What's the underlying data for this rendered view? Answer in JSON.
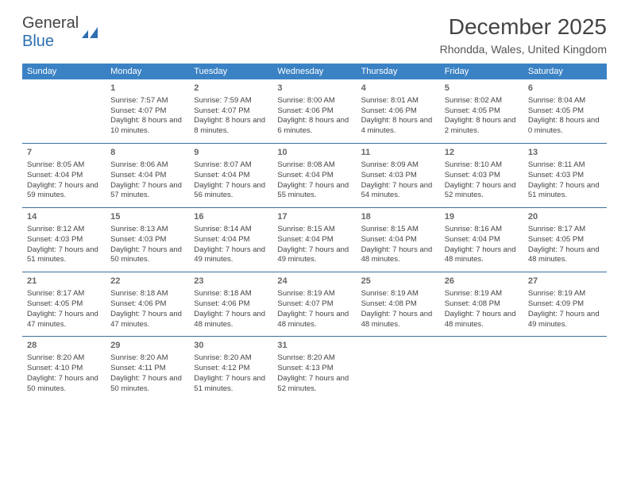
{
  "logo": {
    "word1": "General",
    "word2": "Blue"
  },
  "title": "December 2025",
  "location": "Rhondda, Wales, United Kingdom",
  "colors": {
    "headerBg": "#3b82c4",
    "headerText": "#ffffff",
    "rule": "#3b6fa0",
    "text": "#444444",
    "logoBlue": "#2d6fb0"
  },
  "dayHeaders": [
    "Sunday",
    "Monday",
    "Tuesday",
    "Wednesday",
    "Thursday",
    "Friday",
    "Saturday"
  ],
  "weeks": [
    [
      null,
      {
        "d": "1",
        "sr": "7:57 AM",
        "ss": "4:07 PM",
        "dl": "8 hours and 10 minutes."
      },
      {
        "d": "2",
        "sr": "7:59 AM",
        "ss": "4:07 PM",
        "dl": "8 hours and 8 minutes."
      },
      {
        "d": "3",
        "sr": "8:00 AM",
        "ss": "4:06 PM",
        "dl": "8 hours and 6 minutes."
      },
      {
        "d": "4",
        "sr": "8:01 AM",
        "ss": "4:06 PM",
        "dl": "8 hours and 4 minutes."
      },
      {
        "d": "5",
        "sr": "8:02 AM",
        "ss": "4:05 PM",
        "dl": "8 hours and 2 minutes."
      },
      {
        "d": "6",
        "sr": "8:04 AM",
        "ss": "4:05 PM",
        "dl": "8 hours and 0 minutes."
      }
    ],
    [
      {
        "d": "7",
        "sr": "8:05 AM",
        "ss": "4:04 PM",
        "dl": "7 hours and 59 minutes."
      },
      {
        "d": "8",
        "sr": "8:06 AM",
        "ss": "4:04 PM",
        "dl": "7 hours and 57 minutes."
      },
      {
        "d": "9",
        "sr": "8:07 AM",
        "ss": "4:04 PM",
        "dl": "7 hours and 56 minutes."
      },
      {
        "d": "10",
        "sr": "8:08 AM",
        "ss": "4:04 PM",
        "dl": "7 hours and 55 minutes."
      },
      {
        "d": "11",
        "sr": "8:09 AM",
        "ss": "4:03 PM",
        "dl": "7 hours and 54 minutes."
      },
      {
        "d": "12",
        "sr": "8:10 AM",
        "ss": "4:03 PM",
        "dl": "7 hours and 52 minutes."
      },
      {
        "d": "13",
        "sr": "8:11 AM",
        "ss": "4:03 PM",
        "dl": "7 hours and 51 minutes."
      }
    ],
    [
      {
        "d": "14",
        "sr": "8:12 AM",
        "ss": "4:03 PM",
        "dl": "7 hours and 51 minutes."
      },
      {
        "d": "15",
        "sr": "8:13 AM",
        "ss": "4:03 PM",
        "dl": "7 hours and 50 minutes."
      },
      {
        "d": "16",
        "sr": "8:14 AM",
        "ss": "4:04 PM",
        "dl": "7 hours and 49 minutes."
      },
      {
        "d": "17",
        "sr": "8:15 AM",
        "ss": "4:04 PM",
        "dl": "7 hours and 49 minutes."
      },
      {
        "d": "18",
        "sr": "8:15 AM",
        "ss": "4:04 PM",
        "dl": "7 hours and 48 minutes."
      },
      {
        "d": "19",
        "sr": "8:16 AM",
        "ss": "4:04 PM",
        "dl": "7 hours and 48 minutes."
      },
      {
        "d": "20",
        "sr": "8:17 AM",
        "ss": "4:05 PM",
        "dl": "7 hours and 48 minutes."
      }
    ],
    [
      {
        "d": "21",
        "sr": "8:17 AM",
        "ss": "4:05 PM",
        "dl": "7 hours and 47 minutes."
      },
      {
        "d": "22",
        "sr": "8:18 AM",
        "ss": "4:06 PM",
        "dl": "7 hours and 47 minutes."
      },
      {
        "d": "23",
        "sr": "8:18 AM",
        "ss": "4:06 PM",
        "dl": "7 hours and 48 minutes."
      },
      {
        "d": "24",
        "sr": "8:19 AM",
        "ss": "4:07 PM",
        "dl": "7 hours and 48 minutes."
      },
      {
        "d": "25",
        "sr": "8:19 AM",
        "ss": "4:08 PM",
        "dl": "7 hours and 48 minutes."
      },
      {
        "d": "26",
        "sr": "8:19 AM",
        "ss": "4:08 PM",
        "dl": "7 hours and 48 minutes."
      },
      {
        "d": "27",
        "sr": "8:19 AM",
        "ss": "4:09 PM",
        "dl": "7 hours and 49 minutes."
      }
    ],
    [
      {
        "d": "28",
        "sr": "8:20 AM",
        "ss": "4:10 PM",
        "dl": "7 hours and 50 minutes."
      },
      {
        "d": "29",
        "sr": "8:20 AM",
        "ss": "4:11 PM",
        "dl": "7 hours and 50 minutes."
      },
      {
        "d": "30",
        "sr": "8:20 AM",
        "ss": "4:12 PM",
        "dl": "7 hours and 51 minutes."
      },
      {
        "d": "31",
        "sr": "8:20 AM",
        "ss": "4:13 PM",
        "dl": "7 hours and 52 minutes."
      },
      null,
      null,
      null
    ]
  ],
  "labels": {
    "sunrise": "Sunrise: ",
    "sunset": "Sunset: ",
    "daylight": "Daylight: "
  }
}
